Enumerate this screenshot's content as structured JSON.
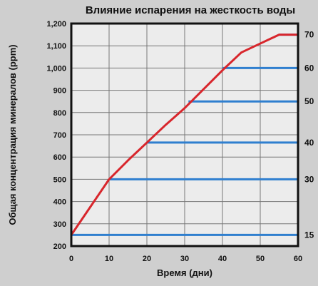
{
  "chart_data": {
    "type": "line",
    "title": "Влияние испарения на жесткость воды",
    "xlabel": "Время (дни)",
    "ylabel": "Общая концентрация минералов (ppm)",
    "xlim": [
      0,
      60
    ],
    "ylim": [
      200,
      1200
    ],
    "x_ticks": [
      0,
      10,
      20,
      30,
      40,
      50,
      60
    ],
    "y_ticks": [
      200,
      300,
      400,
      500,
      600,
      700,
      800,
      900,
      1000,
      1100,
      1200
    ],
    "x_tick_labels": [
      "0",
      "10",
      "20",
      "30",
      "40",
      "50",
      "60"
    ],
    "y_tick_labels": [
      "200",
      "300",
      "400",
      "500",
      "600",
      "700",
      "800",
      "900",
      "1,000",
      "1,100",
      "1,200"
    ],
    "grid": true,
    "line_color": "#d8262c",
    "level_color": "#2f7fcf",
    "series": [
      {
        "x": [
          0,
          5,
          10,
          15,
          20,
          25,
          30,
          35,
          40,
          45,
          50,
          55,
          60
        ],
        "y": [
          250,
          375,
          500,
          585,
          665,
          745,
          820,
          905,
          990,
          1070,
          1110,
          1150,
          1150
        ]
      }
    ],
    "levels": [
      {
        "label": "15",
        "y": 250,
        "x_start": 0
      },
      {
        "label": "30",
        "y": 500,
        "x_start": 10
      },
      {
        "label": "40",
        "y": 665,
        "x_start": 20
      },
      {
        "label": "50",
        "y": 850,
        "x_start": 31
      },
      {
        "label": "60",
        "y": 1000,
        "x_start": 40
      },
      {
        "label": "70",
        "y": 1150,
        "x_start": 55
      }
    ]
  }
}
